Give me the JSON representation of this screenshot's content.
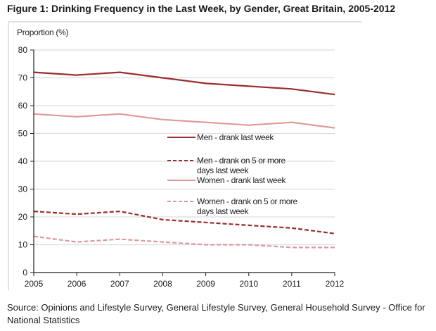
{
  "figure": {
    "title": "Figure 1: Drinking Frequency in the Last Week, by Gender, Great Britain, 2005-2012",
    "source": "Source: Opinions and Lifestyle Survey, General Lifestyle Survey, General Household Survey - Office for National Statistics"
  },
  "chart_data": {
    "type": "line",
    "title": "Drinking Frequency in the Last Week, by Gender, Great Britain, 2005-2012",
    "xlabel": "",
    "ylabel": "Proportion (%)",
    "x": [
      "2005",
      "2006",
      "2007",
      "2008",
      "2009",
      "2010",
      "2011",
      "2012"
    ],
    "ylim": [
      0,
      80
    ],
    "yticks": [
      0,
      10,
      20,
      30,
      40,
      50,
      60,
      70,
      80
    ],
    "grid": true,
    "legend_position": "center-right",
    "series": [
      {
        "name": "Men - drank last week",
        "legend_lines": [
          "Men - drank last week"
        ],
        "color": "#9b2d30",
        "style": "solid",
        "values": [
          72,
          71,
          72,
          70,
          68,
          67,
          66,
          64
        ]
      },
      {
        "name": "Men - drank on 5 or more days last week",
        "legend_lines": [
          "Men - drank on 5 or more",
          "days last week"
        ],
        "color": "#9b2d30",
        "style": "dashed",
        "values": [
          22,
          21,
          22,
          19,
          18,
          17,
          16,
          14
        ]
      },
      {
        "name": "Women - drank last week",
        "legend_lines": [
          "Women - drank last week"
        ],
        "color": "#e0999a",
        "style": "solid",
        "values": [
          57,
          56,
          57,
          55,
          54,
          53,
          54,
          52
        ]
      },
      {
        "name": "Women - drank on 5 or more days last week",
        "legend_lines": [
          "Women - drank on 5 or more",
          "days last week"
        ],
        "color": "#e0999a",
        "style": "dashed",
        "values": [
          13,
          11,
          12,
          11,
          10,
          10,
          9,
          9
        ]
      }
    ]
  }
}
